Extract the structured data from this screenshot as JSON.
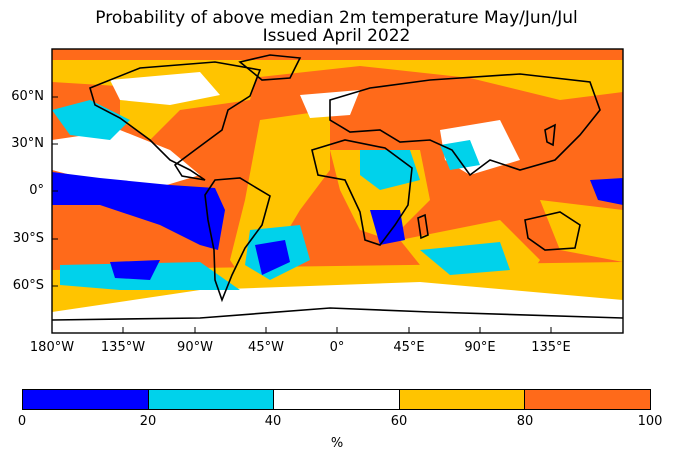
{
  "title": {
    "line1": "Probability of above median 2m temperature May/Jun/Jul",
    "line2": "Issued April 2022"
  },
  "axes": {
    "x_ticks": [
      "180°W",
      "135°W",
      "90°W",
      "45°W",
      "0°",
      "45°E",
      "90°E",
      "135°E"
    ],
    "y_ticks": [
      "60°N",
      "30°N",
      "0°",
      "30°S",
      "60°S"
    ]
  },
  "colorbar": {
    "ticks": [
      "0",
      "20",
      "40",
      "60",
      "80",
      "100"
    ],
    "unit": "%",
    "colors": [
      "#0000ff",
      "#00d2eb",
      "#ffffff",
      "#ffc400",
      "#ff6a1a"
    ]
  },
  "colors": {
    "very_low": "#0000ff",
    "low": "#00d2eb",
    "neutral": "#ffffff",
    "high": "#ffc400",
    "very_high": "#ff6a1a",
    "outline": "#000000"
  }
}
